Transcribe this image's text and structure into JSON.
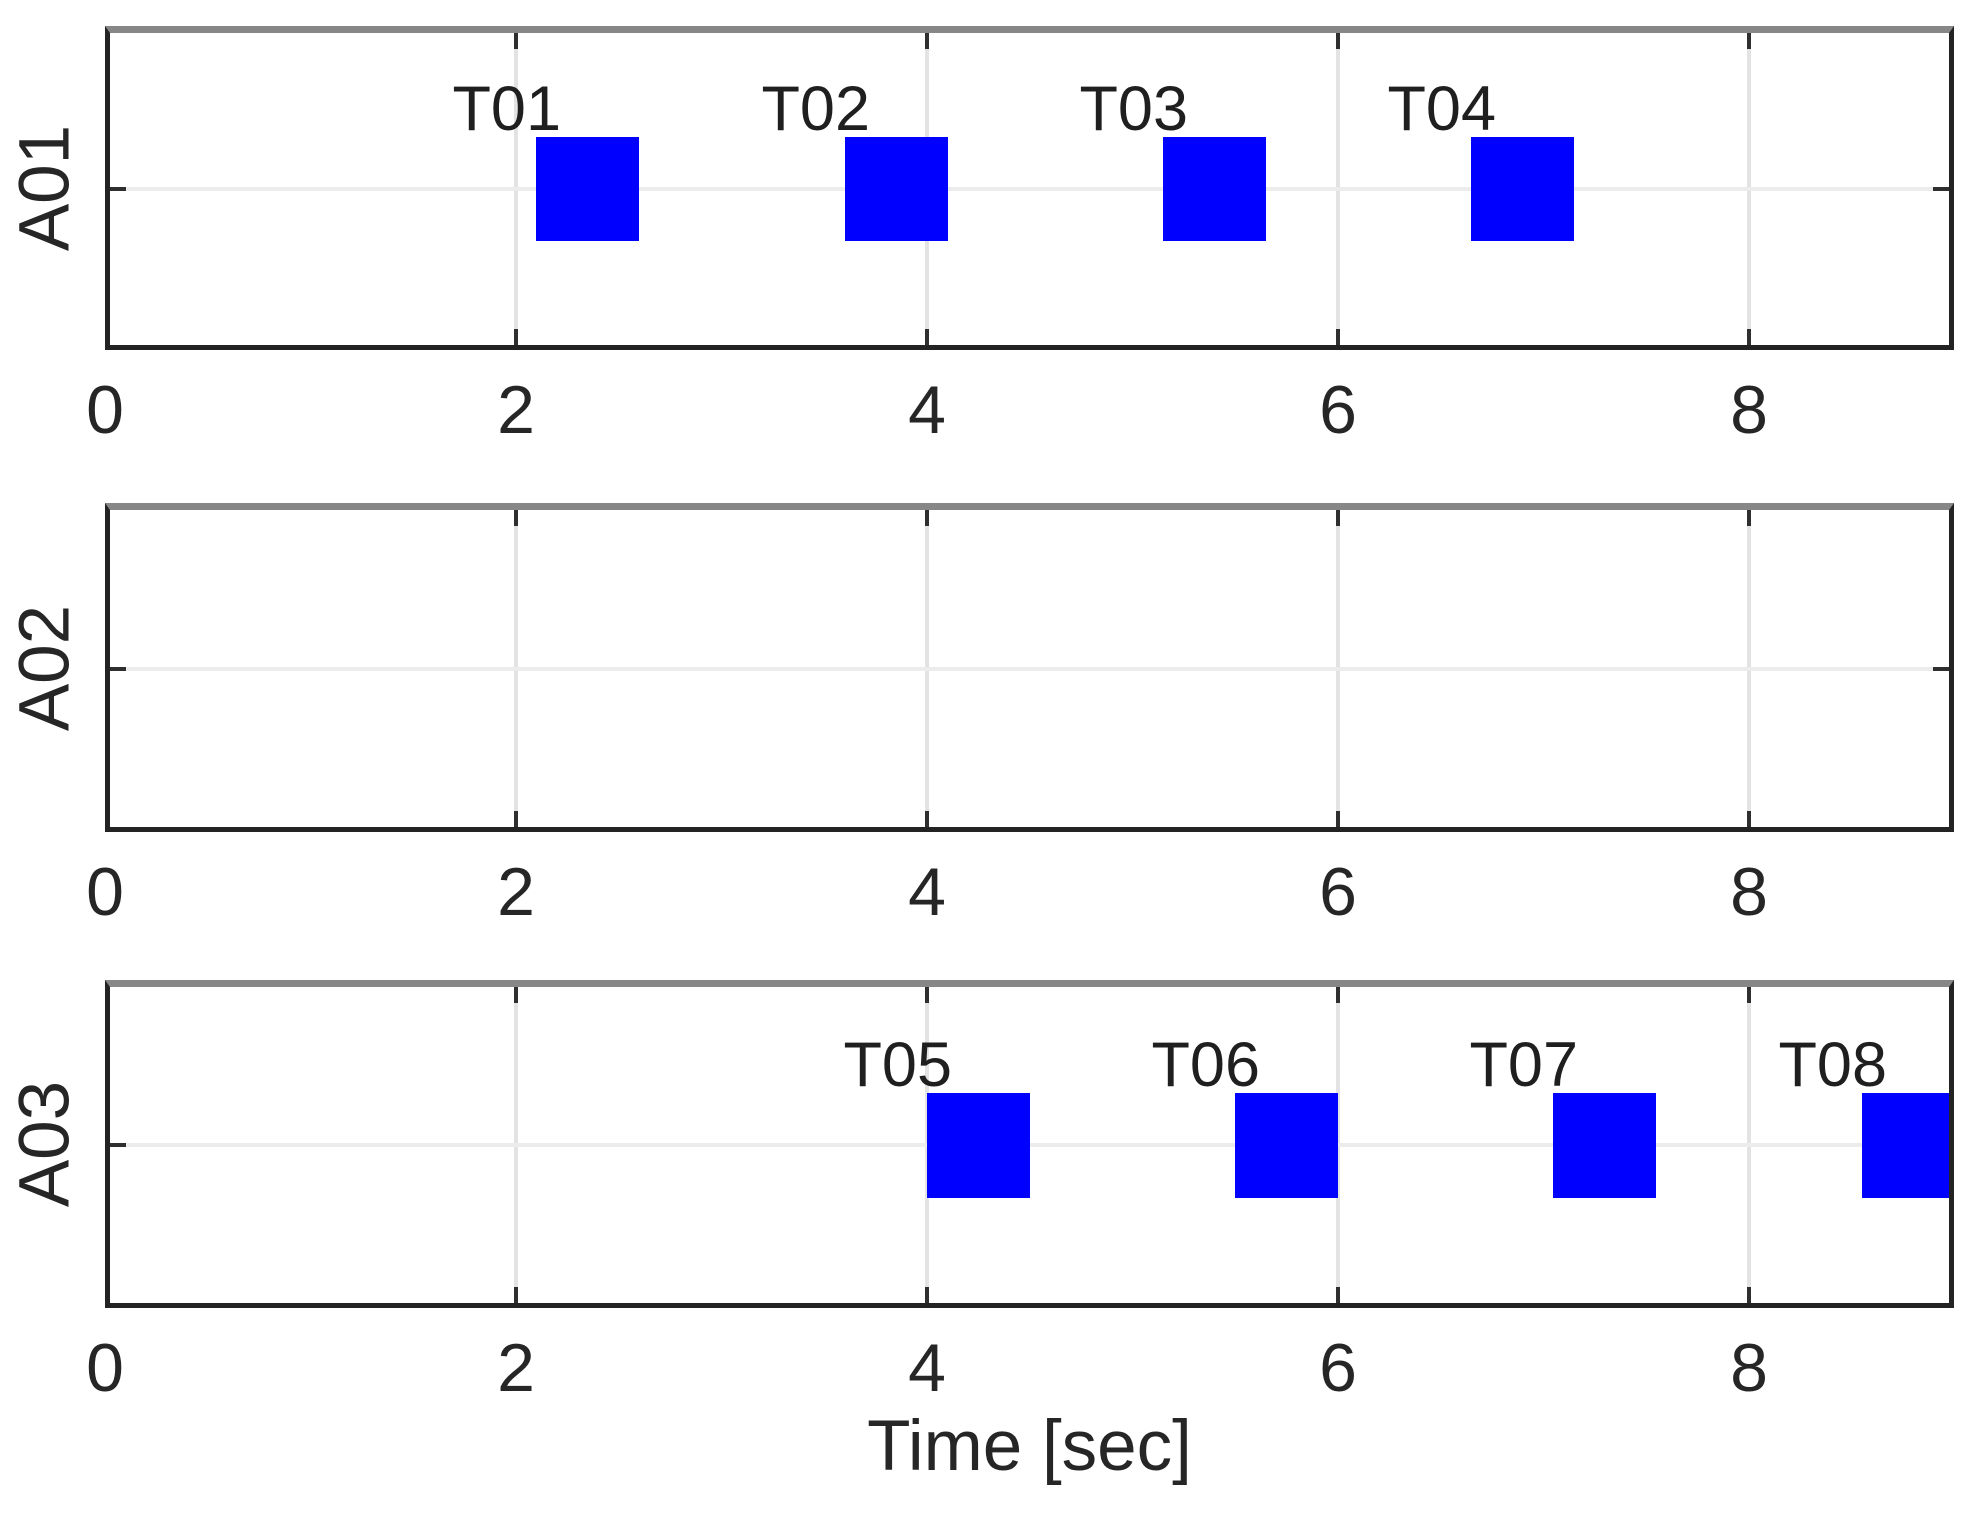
{
  "chart_data": {
    "type": "gantt",
    "title": "",
    "xlabel": "Time [sec]",
    "xlim": [
      0,
      9
    ],
    "xticks": [
      0,
      2,
      4,
      6,
      8
    ],
    "grid": true,
    "legend": "none",
    "marker_color": "#0000ff",
    "axis_color": "#232323",
    "grid_color": "#e3e3e3",
    "text_color": "#262626",
    "subplots": [
      {
        "ylabel": "A01",
        "tasks": [
          {
            "label": "T01",
            "start": 2.1,
            "end": 2.6
          },
          {
            "label": "T02",
            "start": 3.6,
            "end": 4.1
          },
          {
            "label": "T03",
            "start": 5.15,
            "end": 5.65
          },
          {
            "label": "T04",
            "start": 6.65,
            "end": 7.15
          }
        ]
      },
      {
        "ylabel": "A02",
        "tasks": []
      },
      {
        "ylabel": "A03",
        "tasks": [
          {
            "label": "T05",
            "start": 4.0,
            "end": 4.5
          },
          {
            "label": "T06",
            "start": 5.5,
            "end": 6.0
          },
          {
            "label": "T07",
            "start": 7.05,
            "end": 7.55
          },
          {
            "label": "T08",
            "start": 8.55,
            "end": 9.05
          }
        ]
      }
    ]
  }
}
